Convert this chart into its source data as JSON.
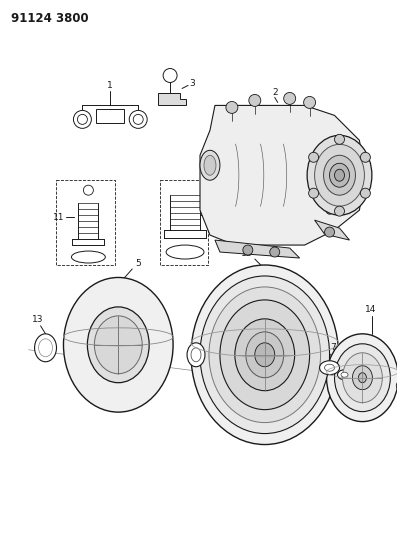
{
  "title_text": "91124 3800",
  "bg_color": "#ffffff",
  "line_color": "#1a1a1a",
  "text_color": "#1a1a1a",
  "fig_width": 3.98,
  "fig_height": 5.33,
  "dpi": 100
}
